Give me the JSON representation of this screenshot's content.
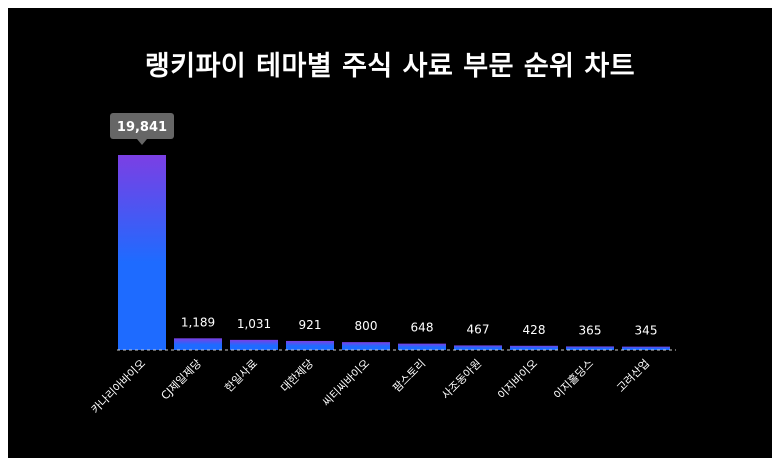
{
  "chart_data": {
    "type": "bar",
    "title": "랭키파이 테마별 주식 사료 부문 순위 차트",
    "categories": [
      "카나리아바이오",
      "CJ제일제당",
      "한일사료",
      "대한제당",
      "씨티씨바이오",
      "팜스토리",
      "사조동아원",
      "이지바이오",
      "이지홀딩스",
      "고려산업"
    ],
    "values": [
      19841,
      1189,
      1031,
      921,
      800,
      648,
      467,
      428,
      365,
      345
    ],
    "value_labels": [
      "19,841",
      "1,189",
      "1,031",
      "921",
      "800",
      "648",
      "467",
      "428",
      "365",
      "345"
    ],
    "xlabel": "",
    "ylabel": "",
    "ylim": [
      0,
      19841
    ],
    "grid": false,
    "colors": {
      "bar_top": "#7b3fe4",
      "bar_bottom": "#1e6bff",
      "tooltip_bg": "#666666",
      "background": "#000000"
    }
  }
}
